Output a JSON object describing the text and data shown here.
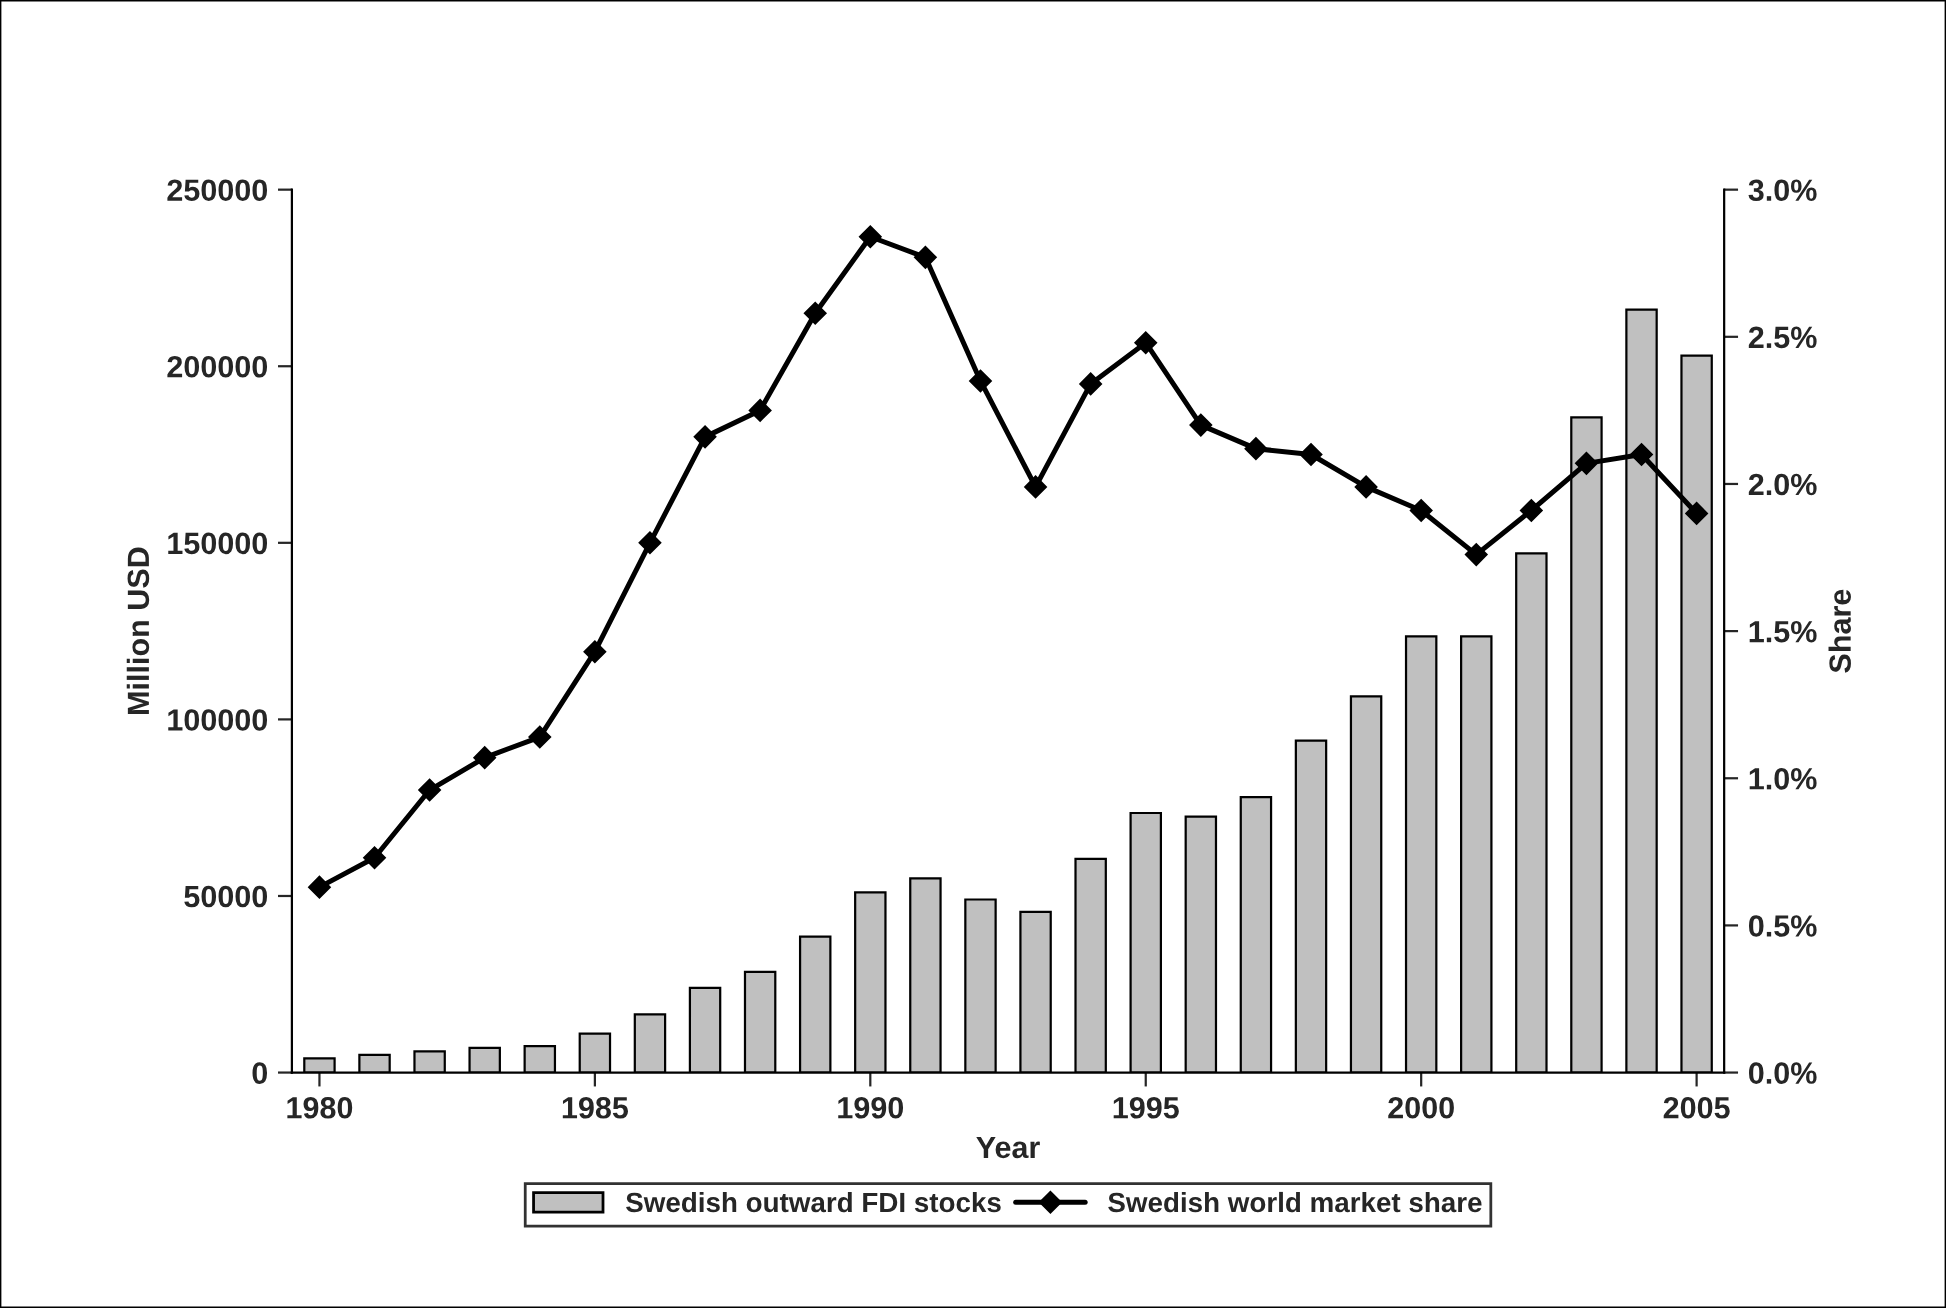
{
  "chart_data": {
    "type": "bar",
    "xlabel": "Year",
    "ylabel": "Million USD",
    "y2label": "Share",
    "x": [
      1980,
      1981,
      1982,
      1983,
      1984,
      1985,
      1986,
      1987,
      1988,
      1989,
      1990,
      1991,
      1992,
      1993,
      1994,
      1995,
      1996,
      1997,
      1998,
      1999,
      2000,
      2001,
      2002,
      2003,
      2004,
      2005
    ],
    "series": [
      {
        "name": "Swedish outward FDI stocks",
        "color": "#c0c0c0",
        "values": [
          4000,
          5000,
          6000,
          7000,
          7500,
          11000,
          16500,
          24000,
          28500,
          38500,
          51000,
          55000,
          49000,
          45500,
          60500,
          73500,
          72500,
          78000,
          94000,
          106500,
          123500,
          123500,
          147000,
          185500,
          216000,
          203000
        ]
      },
      {
        "name": "Swedish world market share",
        "type": "line",
        "axis": "y2",
        "color": "#000000",
        "marker": "diamond",
        "line_style": "solid",
        "values": [
          0.63,
          0.73,
          0.96,
          1.07,
          1.14,
          1.43,
          1.8,
          2.16,
          2.25,
          2.58,
          2.84,
          2.77,
          2.35,
          1.99,
          2.34,
          2.48,
          2.2,
          2.12,
          2.1,
          1.99,
          1.91,
          1.76,
          1.91,
          2.07,
          2.1,
          1.9
        ]
      }
    ],
    "xlim": [
      1979.5,
      2005.5
    ],
    "xticks": [
      1980,
      1985,
      1990,
      1995,
      2000,
      2005
    ],
    "ylim": [
      0,
      250000
    ],
    "yticks": [
      0,
      50000,
      100000,
      150000,
      200000,
      250000
    ],
    "y2lim": [
      0,
      3.0
    ],
    "y2ticks": [
      {
        "value": 0,
        "label": "0.0%"
      },
      {
        "value": 0.5,
        "label": "0.5%"
      },
      {
        "value": 1.0,
        "label": "1.0%"
      },
      {
        "value": 1.5,
        "label": "1.5%"
      },
      {
        "value": 2.0,
        "label": "2.0%"
      },
      {
        "value": 2.5,
        "label": "2.5%"
      },
      {
        "value": 3.0,
        "label": "3.0%"
      }
    ],
    "grid": false,
    "legend": "bottom"
  }
}
